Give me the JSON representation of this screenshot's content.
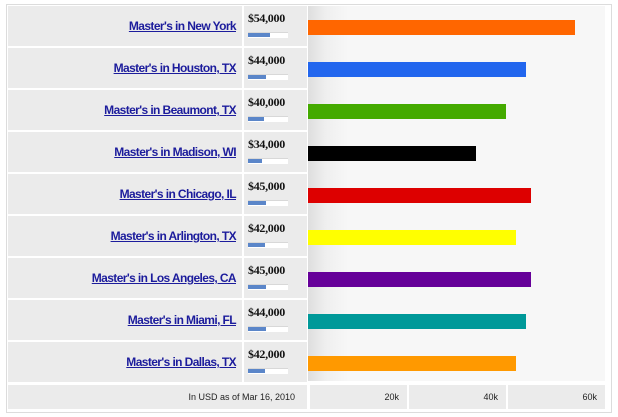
{
  "footer_note": "In USD as of Mar 16, 2010",
  "chart_data": {
    "type": "bar",
    "orientation": "horizontal",
    "categories": [
      "Master's in New York",
      "Master's in Houston, TX",
      "Master's in Beaumont, TX",
      "Master's in Madison, WI",
      "Master's in Chicago, IL",
      "Master's in Arlington, TX",
      "Master's in Los Angeles, CA",
      "Master's in Miami, FL",
      "Master's in Dallas, TX"
    ],
    "values": [
      54000,
      44000,
      40000,
      34000,
      45000,
      42000,
      45000,
      44000,
      42000
    ],
    "value_labels": [
      "$54,000",
      "$44,000",
      "$40,000",
      "$34,000",
      "$45,000",
      "$42,000",
      "$45,000",
      "$44,000",
      "$42,000"
    ],
    "colors": [
      "#ff6600",
      "#2266ee",
      "#44aa00",
      "#000000",
      "#dd0000",
      "#ffff00",
      "#660099",
      "#009999",
      "#ff9900"
    ],
    "x_ticks": [
      20000,
      40000,
      60000
    ],
    "x_tick_labels": [
      "20k",
      "40k",
      "60k"
    ],
    "xlim": [
      0,
      60000
    ],
    "grid": false,
    "mini_bar_max": 100000
  }
}
